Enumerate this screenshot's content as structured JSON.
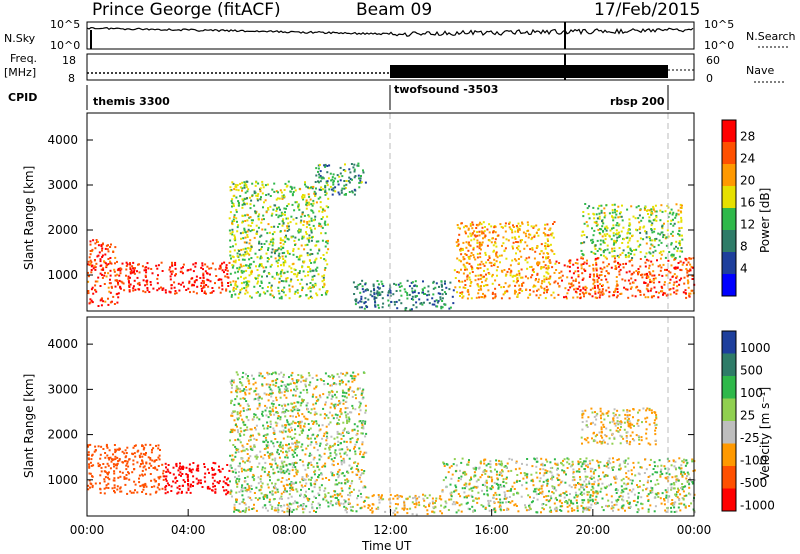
{
  "header": {
    "station": "Prince George (fitACF)",
    "beam": "Beam 09",
    "date": "17/Feb/2015"
  },
  "strips": {
    "nsky_label": "N.Sky",
    "nsky_ticks": [
      "10^5",
      "10^0"
    ],
    "nsearch_label": "N.Search",
    "nsearch_ticks": [
      "10^5",
      "10^0"
    ],
    "freq_label": "Freq.",
    "freq_unit": "[MHz]",
    "freq_ticks": [
      "18",
      "8"
    ],
    "nave_label": "Nave",
    "nave_ticks": [
      "60",
      "0"
    ],
    "cpid_label": "CPID",
    "cpid_segments": [
      "themis 3300",
      "twofsound -3503",
      "rbsp 200"
    ]
  },
  "chart_data": [
    {
      "type": "heatmap",
      "panel": "power",
      "ylabel": "Slant Range [km]",
      "ylim": [
        200,
        4600
      ],
      "yticks": [
        "1000",
        "2000",
        "3000",
        "4000"
      ],
      "xlim": [
        "00:00",
        "24:00"
      ],
      "colorbar_label": "Power [dB]",
      "colorbar_ticks": [
        "28",
        "24",
        "20",
        "16",
        "12",
        "8",
        "4"
      ],
      "colorbar_colors": [
        "#ff0000",
        "#ff5000",
        "#ff9900",
        "#e6e000",
        "#2fb84a",
        "#2f7c68",
        "#1e3f9c",
        "#0000ff"
      ],
      "scatter_regions": [
        {
          "t0": 0.0,
          "t1": 1.2,
          "r0": 300,
          "r1": 1800,
          "level": 26
        },
        {
          "t0": 1.2,
          "t1": 5.6,
          "r0": 600,
          "r1": 1300,
          "level": 28
        },
        {
          "t0": 5.6,
          "t1": 9.5,
          "r0": 500,
          "r1": 3100,
          "level": 14
        },
        {
          "t0": 9.0,
          "t1": 11.0,
          "r0": 2800,
          "r1": 3500,
          "level": 10
        },
        {
          "t0": 10.5,
          "t1": 14.5,
          "r0": 250,
          "r1": 900,
          "level": 8
        },
        {
          "t0": 14.5,
          "t1": 18.5,
          "r0": 500,
          "r1": 2200,
          "level": 20
        },
        {
          "t0": 18.5,
          "t1": 24.0,
          "r0": 500,
          "r1": 1400,
          "level": 24
        },
        {
          "t0": 19.5,
          "t1": 23.5,
          "r0": 1400,
          "r1": 2600,
          "level": 14
        }
      ]
    },
    {
      "type": "heatmap",
      "panel": "velocity",
      "ylabel": "Slant Range [km]",
      "ylim": [
        200,
        4600
      ],
      "yticks": [
        "1000",
        "2000",
        "3000",
        "4000"
      ],
      "xlim": [
        "00:00",
        "24:00"
      ],
      "xticks": [
        "00:00",
        "04:00",
        "08:00",
        "12:00",
        "16:00",
        "20:00",
        "00:00"
      ],
      "xlabel": "Time UT",
      "colorbar_label": "Velocity [m s⁻¹]",
      "colorbar_ticks": [
        "1000",
        "500",
        "100",
        "25",
        "-25",
        "-100",
        "-500",
        "-1000"
      ],
      "colorbar_colors": [
        "#1e3f9c",
        "#2f7c68",
        "#2fb84a",
        "#90d050",
        "#bebebe",
        "#ff9900",
        "#ff5000",
        "#ff0000"
      ],
      "scatter_regions": [
        {
          "t0": 0.0,
          "t1": 3.0,
          "r0": 700,
          "r1": 1800,
          "level": -500
        },
        {
          "t0": 3.0,
          "t1": 5.6,
          "r0": 700,
          "r1": 1400,
          "level": -1000
        },
        {
          "t0": 5.6,
          "t1": 11.0,
          "r0": 300,
          "r1": 3400,
          "level": 0
        },
        {
          "t0": 11.0,
          "t1": 14.0,
          "r0": 250,
          "r1": 700,
          "level": -100
        },
        {
          "t0": 14.0,
          "t1": 24.0,
          "r0": 300,
          "r1": 1500,
          "level": 0
        },
        {
          "t0": 19.5,
          "t1": 22.5,
          "r0": 1800,
          "r1": 2600,
          "level": -100
        }
      ]
    }
  ]
}
